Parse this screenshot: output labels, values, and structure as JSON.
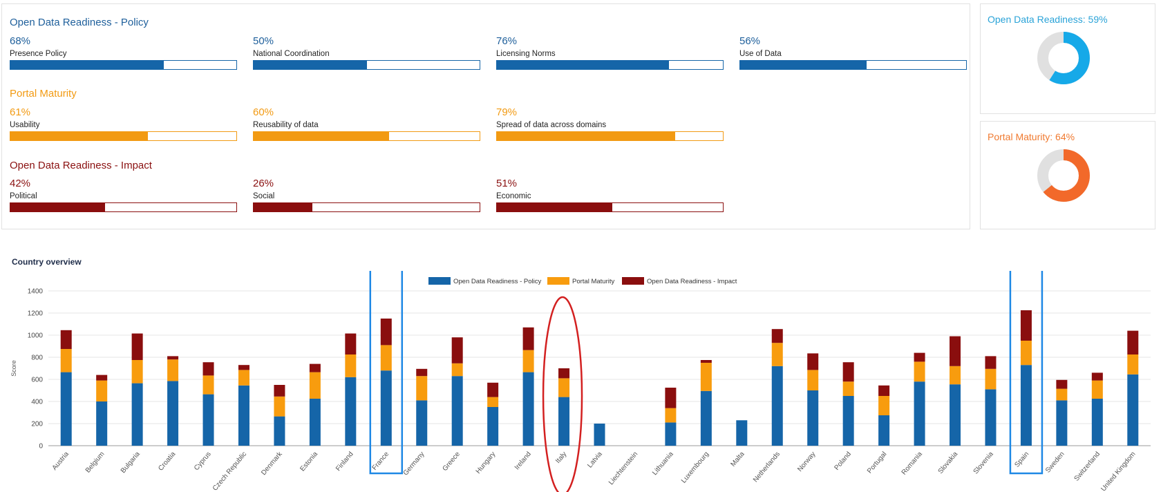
{
  "summary": {
    "policy": {
      "title": "Open Data Readiness - Policy",
      "items": [
        {
          "pct": "68%",
          "label": "Presence Policy",
          "value": 0.68
        },
        {
          "pct": "50%",
          "label": "National Coordination",
          "value": 0.5
        },
        {
          "pct": "76%",
          "label": "Licensing Norms",
          "value": 0.76
        },
        {
          "pct": "56%",
          "label": "Use of Data",
          "value": 0.56
        }
      ]
    },
    "portal": {
      "title": "Portal Maturity",
      "items": [
        {
          "pct": "61%",
          "label": "Usability",
          "value": 0.61
        },
        {
          "pct": "60%",
          "label": "Reusability of data",
          "value": 0.6
        },
        {
          "pct": "79%",
          "label": "Spread of data across domains",
          "value": 0.79
        }
      ]
    },
    "impact": {
      "title": "Open Data Readiness - Impact",
      "items": [
        {
          "pct": "42%",
          "label": "Political",
          "value": 0.42
        },
        {
          "pct": "26%",
          "label": "Social",
          "value": 0.26
        },
        {
          "pct": "51%",
          "label": "Economic",
          "value": 0.51
        }
      ]
    }
  },
  "donuts": [
    {
      "title": "Open Data Readiness: 59%",
      "value": 0.59,
      "color": "#16a9e8",
      "track": "#e0e0e0",
      "title_color": "#2aa3d8"
    },
    {
      "title": "Portal Maturity: 64%",
      "value": 0.64,
      "color": "#f2692a",
      "track": "#e0e0e0",
      "title_color": "#f07a30"
    }
  ],
  "overview_title": "Country overview",
  "chart_data": {
    "type": "bar",
    "stacked": true,
    "ylabel": "Score",
    "ylim": [
      0,
      1400
    ],
    "yticks": [
      "0",
      "200",
      "400",
      "600",
      "800",
      "1000",
      "1200",
      "1400"
    ],
    "grid": true,
    "legend_position": "top-center",
    "categories": [
      "Austria",
      "Belgium",
      "Bulgaria",
      "Croatia",
      "Cyprus",
      "Czech Republic",
      "Denmark",
      "Estonia",
      "Finland",
      "France",
      "Germany",
      "Greece",
      "Hungary",
      "Ireland",
      "Italy",
      "Latvia",
      "Liechtenstein",
      "Lithuania",
      "Luxembourg",
      "Malta",
      "Netherlands",
      "Norway",
      "Poland",
      "Portugal",
      "Romania",
      "Slovakia",
      "Slovenia",
      "Spain",
      "Sweden",
      "Switzerland",
      "United Kingdom"
    ],
    "series": [
      {
        "name": "Open Data Readiness - Policy",
        "color": "#1565a8",
        "values": [
          665,
          400,
          565,
          585,
          465,
          545,
          265,
          425,
          620,
          680,
          410,
          630,
          350,
          665,
          440,
          200,
          0,
          210,
          495,
          230,
          720,
          500,
          450,
          275,
          580,
          555,
          510,
          730,
          410,
          425,
          645
        ]
      },
      {
        "name": "Portal Maturity",
        "color": "#f89c0e",
        "values": [
          210,
          190,
          210,
          195,
          170,
          140,
          180,
          240,
          205,
          230,
          220,
          115,
          90,
          200,
          170,
          0,
          0,
          130,
          255,
          0,
          210,
          185,
          130,
          175,
          180,
          165,
          185,
          220,
          105,
          165,
          180
        ]
      },
      {
        "name": "Open Data Readiness - Impact",
        "color": "#8a0e0e",
        "values": [
          170,
          50,
          240,
          30,
          120,
          45,
          105,
          75,
          190,
          240,
          65,
          235,
          130,
          205,
          90,
          0,
          0,
          185,
          25,
          0,
          125,
          150,
          175,
          95,
          80,
          270,
          115,
          275,
          80,
          70,
          215
        ]
      }
    ],
    "highlights": [
      {
        "category": "France",
        "shape": "rectangle",
        "color": "#1e88e5"
      },
      {
        "category": "Italy",
        "shape": "ellipse",
        "color": "#d32020"
      },
      {
        "category": "Spain",
        "shape": "rectangle",
        "color": "#1e88e5"
      }
    ]
  }
}
